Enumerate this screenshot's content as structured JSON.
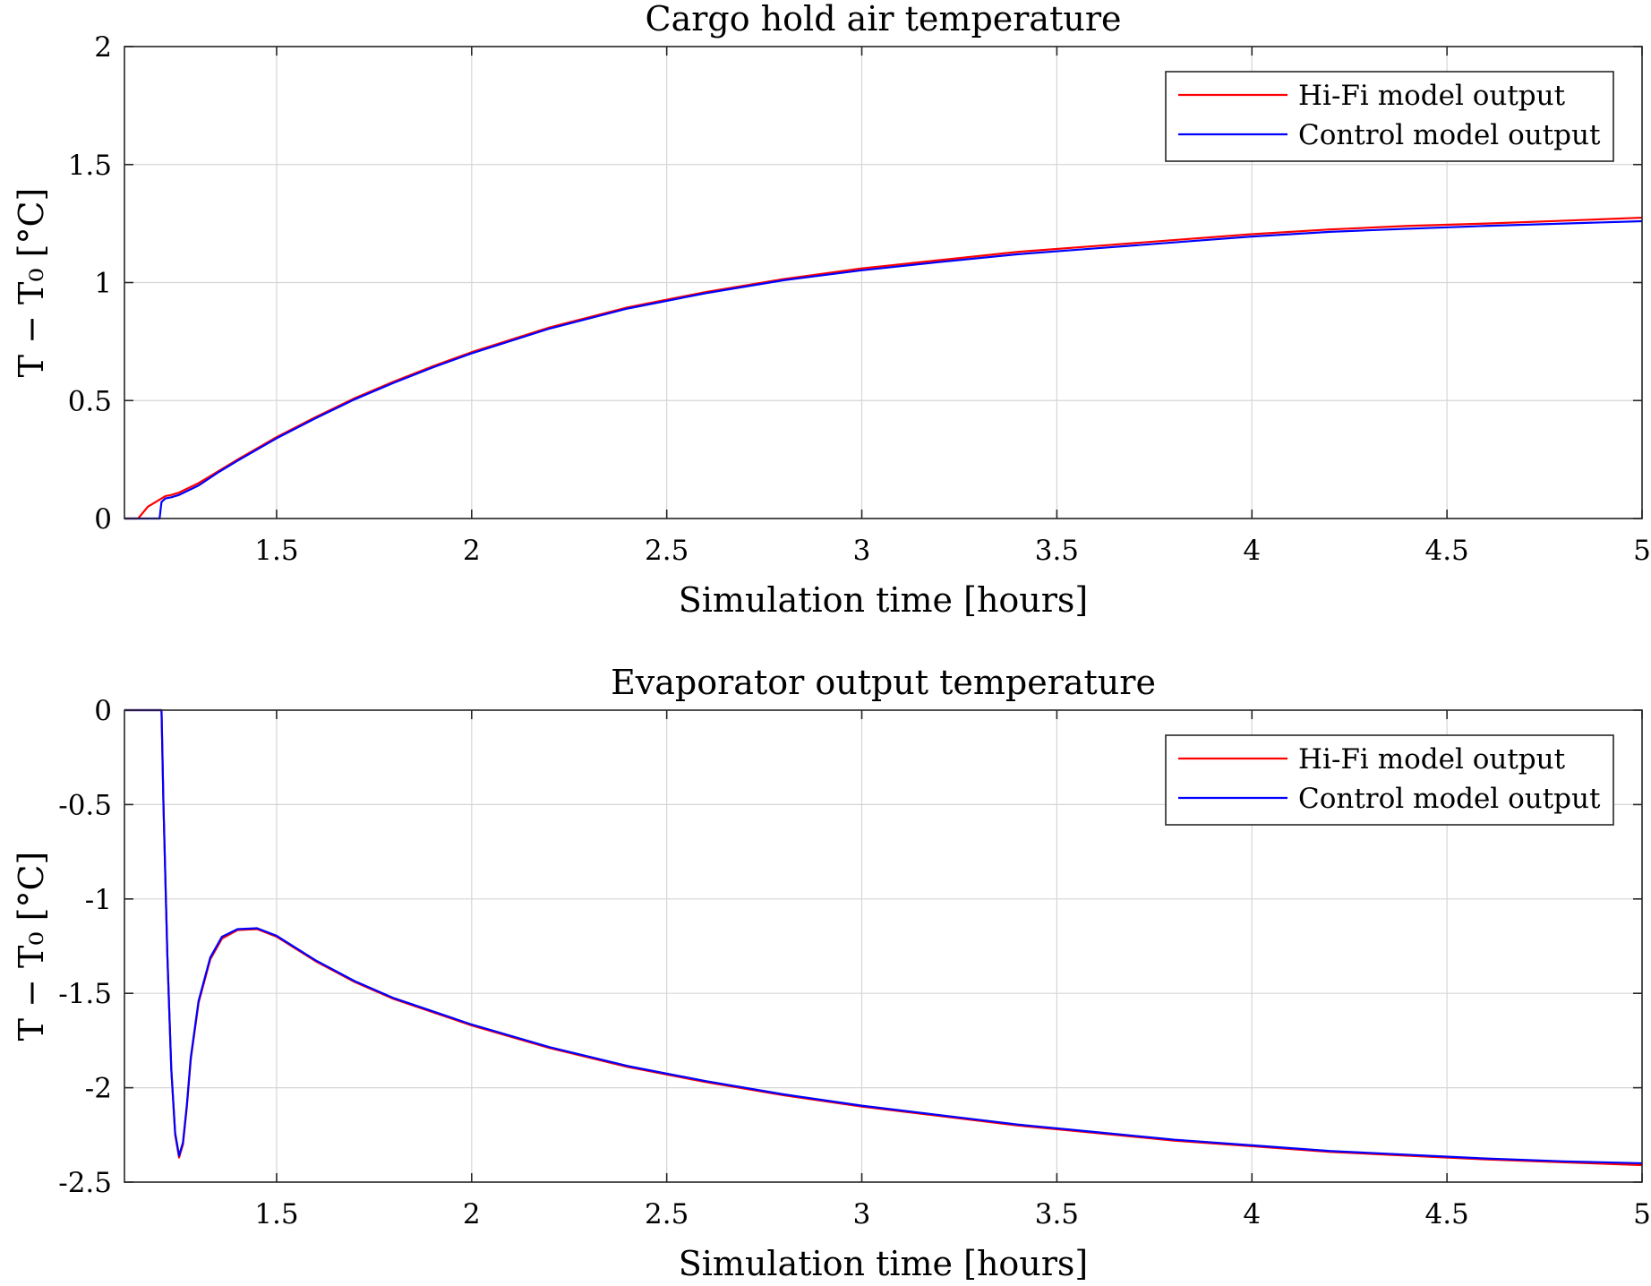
{
  "chart_data": [
    {
      "type": "line",
      "title": "Cargo hold air temperature",
      "xlabel": "Simulation time [hours]",
      "ylabel": "T − T₀ [°C]",
      "xlim": [
        1.11,
        5
      ],
      "ylim": [
        0,
        2
      ],
      "xticks": [
        1.5,
        2,
        2.5,
        3,
        3.5,
        4,
        4.5,
        5
      ],
      "yticks": [
        0,
        0.5,
        1,
        1.5,
        2
      ],
      "xtick_labels": [
        "1.5",
        "2",
        "2.5",
        "3",
        "3.5",
        "4",
        "4.5",
        "5"
      ],
      "ytick_labels": [
        "0",
        "0.5",
        "1",
        "1.5",
        "2"
      ],
      "grid": true,
      "legend_position": "top-right",
      "series": [
        {
          "name": "Hi-Fi model output",
          "color": "#ff0000",
          "x": [
            1.11,
            1.145,
            1.17,
            1.2,
            1.215,
            1.23,
            1.25,
            1.3,
            1.35,
            1.4,
            1.5,
            1.6,
            1.7,
            1.8,
            1.9,
            2.0,
            2.2,
            2.4,
            2.6,
            2.8,
            3.0,
            3.2,
            3.4,
            3.6,
            3.8,
            4.0,
            4.2,
            4.4,
            4.6,
            4.8,
            5.0
          ],
          "y": [
            0.0,
            0.0,
            0.05,
            0.08,
            0.095,
            0.1,
            0.11,
            0.15,
            0.2,
            0.25,
            0.345,
            0.43,
            0.51,
            0.58,
            0.645,
            0.705,
            0.81,
            0.895,
            0.96,
            1.015,
            1.06,
            1.095,
            1.13,
            1.155,
            1.18,
            1.205,
            1.225,
            1.24,
            1.25,
            1.262,
            1.275
          ]
        },
        {
          "name": "Control model output",
          "color": "#0000ff",
          "x": [
            1.11,
            1.2,
            1.205,
            1.215,
            1.23,
            1.25,
            1.3,
            1.35,
            1.4,
            1.5,
            1.6,
            1.7,
            1.8,
            1.9,
            2.0,
            2.2,
            2.4,
            2.6,
            2.8,
            3.0,
            3.2,
            3.4,
            3.6,
            3.8,
            4.0,
            4.2,
            4.4,
            4.6,
            4.8,
            5.0
          ],
          "y": [
            0.0,
            0.0,
            0.07,
            0.085,
            0.09,
            0.1,
            0.14,
            0.195,
            0.245,
            0.34,
            0.425,
            0.505,
            0.575,
            0.64,
            0.7,
            0.805,
            0.89,
            0.955,
            1.01,
            1.052,
            1.087,
            1.12,
            1.145,
            1.17,
            1.195,
            1.215,
            1.228,
            1.24,
            1.25,
            1.26
          ]
        }
      ]
    },
    {
      "type": "line",
      "title": "Evaporator output temperature",
      "xlabel": "Simulation time [hours]",
      "ylabel": "T − T₀ [°C]",
      "xlim": [
        1.11,
        5
      ],
      "ylim": [
        -2.5,
        0
      ],
      "xticks": [
        1.5,
        2,
        2.5,
        3,
        3.5,
        4,
        4.5,
        5
      ],
      "yticks": [
        -2.5,
        -2,
        -1.5,
        -1,
        -0.5,
        0
      ],
      "xtick_labels": [
        "1.5",
        "2",
        "2.5",
        "3",
        "3.5",
        "4",
        "4.5",
        "5"
      ],
      "ytick_labels": [
        "-2.5",
        "-2",
        "-1.5",
        "-1",
        "-0.5",
        "0"
      ],
      "grid": true,
      "legend_position": "top-right",
      "series": [
        {
          "name": "Hi-Fi model output",
          "color": "#ff0000",
          "x": [
            1.11,
            1.205,
            1.21,
            1.22,
            1.23,
            1.24,
            1.25,
            1.26,
            1.27,
            1.28,
            1.3,
            1.33,
            1.36,
            1.4,
            1.45,
            1.5,
            1.6,
            1.7,
            1.8,
            2.0,
            2.2,
            2.4,
            2.6,
            2.8,
            3.0,
            3.2,
            3.4,
            3.6,
            3.8,
            4.0,
            4.2,
            4.4,
            4.6,
            4.8,
            5.0
          ],
          "y": [
            0.0,
            0.0,
            -0.5,
            -1.3,
            -1.9,
            -2.25,
            -2.37,
            -2.3,
            -2.1,
            -1.85,
            -1.55,
            -1.32,
            -1.21,
            -1.165,
            -1.16,
            -1.2,
            -1.33,
            -1.44,
            -1.53,
            -1.67,
            -1.79,
            -1.89,
            -1.97,
            -2.04,
            -2.1,
            -2.15,
            -2.2,
            -2.24,
            -2.28,
            -2.31,
            -2.34,
            -2.36,
            -2.38,
            -2.395,
            -2.41
          ]
        },
        {
          "name": "Control model output",
          "color": "#0000ff",
          "x": [
            1.11,
            1.205,
            1.21,
            1.22,
            1.23,
            1.24,
            1.25,
            1.26,
            1.27,
            1.28,
            1.3,
            1.33,
            1.36,
            1.4,
            1.45,
            1.5,
            1.6,
            1.7,
            1.8,
            2.0,
            2.2,
            2.4,
            2.6,
            2.8,
            3.0,
            3.2,
            3.4,
            3.6,
            3.8,
            4.0,
            4.2,
            4.4,
            4.6,
            4.8,
            5.0
          ],
          "y": [
            0.0,
            0.0,
            -0.5,
            -1.3,
            -1.9,
            -2.24,
            -2.36,
            -2.29,
            -2.09,
            -1.84,
            -1.54,
            -1.31,
            -1.2,
            -1.16,
            -1.155,
            -1.195,
            -1.325,
            -1.435,
            -1.525,
            -1.665,
            -1.785,
            -1.885,
            -1.965,
            -2.035,
            -2.095,
            -2.145,
            -2.195,
            -2.235,
            -2.275,
            -2.305,
            -2.335,
            -2.355,
            -2.375,
            -2.39,
            -2.4
          ]
        }
      ]
    }
  ]
}
